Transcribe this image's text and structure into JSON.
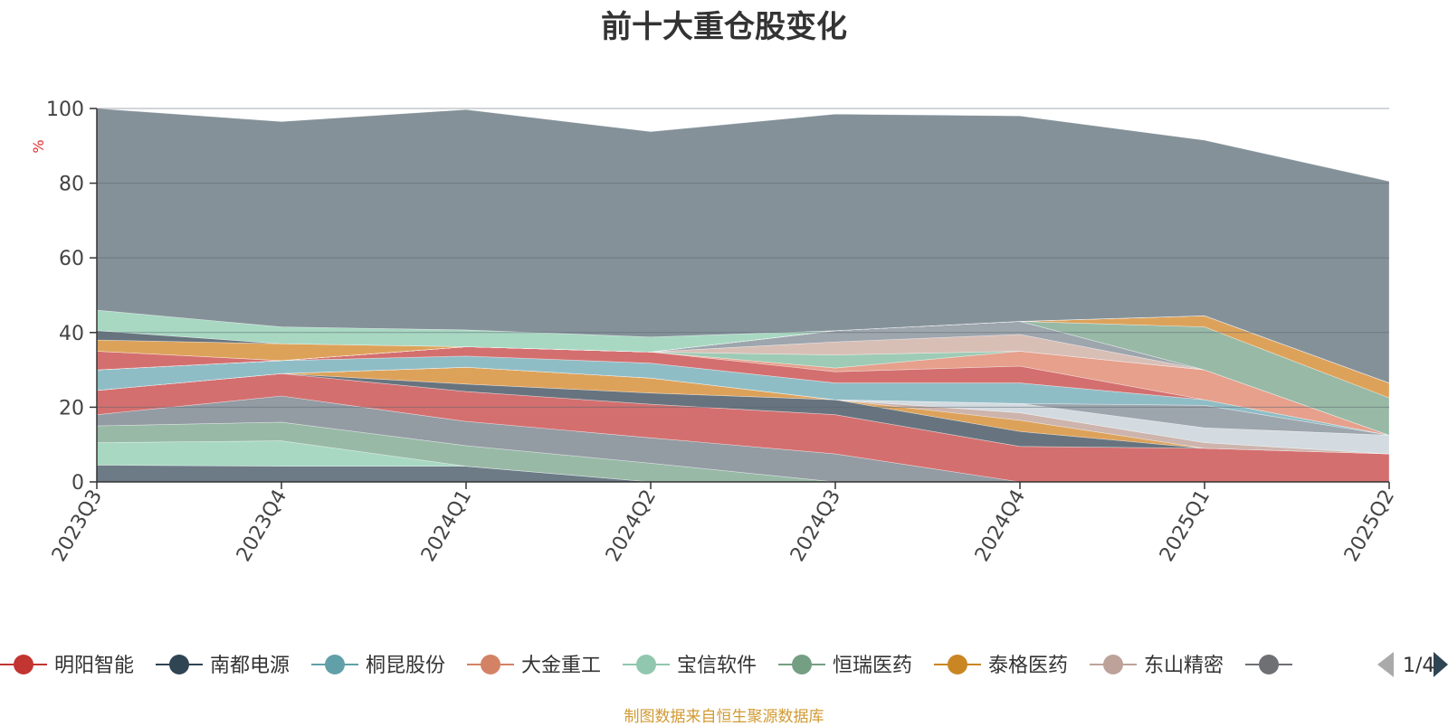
{
  "title": "前十大重仓股变化",
  "source_note": "制图数据来自恒生聚源数据库",
  "legend": {
    "page_indicator": "1/4",
    "prev_button": "previous-page",
    "next_button": "next-page"
  },
  "colors": {
    "title": "#333333",
    "source": "#d19a33",
    "ylabel": "#e03030",
    "background_area": "#849199"
  },
  "chart_data": {
    "type": "area",
    "stacked": true,
    "title": "前十大重仓股变化",
    "ylabel": "%",
    "ylim": [
      0,
      100
    ],
    "yticks": [
      0,
      20,
      40,
      60,
      80,
      100
    ],
    "grid": true,
    "x": [
      "2023Q3",
      "2023Q4",
      "2024Q1",
      "2024Q2",
      "2024Q3",
      "2024Q4",
      "2025Q1",
      "2025Q2"
    ],
    "legend_visible": [
      "明阳智能",
      "南都电源",
      "桐昆股份",
      "大金重工",
      "宝信软件",
      "恒瑞医药",
      "泰格医药",
      "东山精密",
      ""
    ],
    "series": [
      {
        "name": "",
        "color": "#6d7b87",
        "values": [
          4.5,
          4.2,
          4.2,
          0,
          0,
          0,
          0,
          0
        ]
      },
      {
        "name": "宝信软件",
        "color": "#a8d8c2",
        "values": [
          6.0,
          6.8,
          0,
          0,
          0,
          0,
          0,
          0
        ]
      },
      {
        "name": "恒瑞医药",
        "color": "#98b9a6",
        "values": [
          4.5,
          5.0,
          5.5,
          5.0,
          0,
          0,
          0,
          0
        ]
      },
      {
        "name": "",
        "color": "#939ba3",
        "values": [
          3.0,
          7.0,
          6.5,
          6.8,
          7.5,
          0,
          0,
          0
        ]
      },
      {
        "name": "明阳智能",
        "color": "#d46f6f",
        "values": [
          6.5,
          6.0,
          8.0,
          9.0,
          10.5,
          9.5,
          9.0,
          7.5
        ]
      },
      {
        "name": "",
        "color": "#67747f",
        "values": [
          0,
          0,
          2.0,
          3.0,
          4.0,
          4.0,
          0,
          0
        ]
      },
      {
        "name": "泰格医药",
        "color": "#dda25a",
        "values": [
          0,
          0,
          4.5,
          4.0,
          0,
          3.0,
          0,
          0
        ]
      },
      {
        "name": "东山精密",
        "color": "#cdb4ac",
        "values": [
          0,
          0,
          0,
          0,
          0,
          2.0,
          1.5,
          0
        ]
      },
      {
        "name": "",
        "color": "#d3dbe0",
        "values": [
          0,
          0,
          0,
          0,
          0,
          2.5,
          4.0,
          5.0
        ]
      },
      {
        "name": "",
        "color": "#9da5ad",
        "values": [
          0,
          0,
          0,
          0,
          0,
          0,
          6.0,
          0
        ]
      },
      {
        "name": "桐昆股份",
        "color": "#8fbdc6",
        "values": [
          5.5,
          3.5,
          3.0,
          4.0,
          4.5,
          5.5,
          1.5,
          0
        ]
      },
      {
        "name": "",
        "color": "#d46f6f",
        "values": [
          0,
          0,
          2.5,
          3.0,
          3.0,
          4.5,
          0,
          0
        ]
      },
      {
        "name": "大金重工",
        "color": "#e6a08c",
        "values": [
          0,
          0,
          0,
          0,
          1.0,
          4.0,
          8.0,
          0
        ]
      },
      {
        "name": "",
        "color": "#9ecbb5",
        "values": [
          0,
          0,
          0,
          0,
          3.5,
          0,
          0,
          0
        ]
      },
      {
        "name": "",
        "color": "#d8bfb6",
        "values": [
          0,
          0,
          0,
          0,
          3.5,
          4.5,
          0,
          0
        ]
      },
      {
        "name": "",
        "color": "#9da5ad",
        "values": [
          0,
          0,
          0,
          0,
          3.0,
          3.5,
          0,
          0
        ]
      },
      {
        "name": "",
        "color": "#e6a08c",
        "values": [
          0,
          0,
          0,
          0,
          0,
          0,
          0,
          0
        ]
      },
      {
        "name": "",
        "color": "#98b9a6",
        "values": [
          0,
          0,
          0,
          0,
          0,
          0,
          11.5,
          10.0
        ]
      },
      {
        "name": "",
        "color": "#dda25a",
        "values": [
          0,
          0,
          0,
          0,
          0,
          0,
          3.0,
          4.0
        ]
      },
      {
        "name": "",
        "color": "#d46f6f",
        "values": [
          5.0,
          0,
          0,
          0,
          0,
          0,
          0,
          0
        ]
      },
      {
        "name": "",
        "color": "#8fbdc6",
        "values": [
          0,
          0,
          0,
          0,
          0,
          0,
          0,
          0
        ]
      },
      {
        "name": "",
        "color": "#dda25a",
        "values": [
          3.0,
          4.5,
          0,
          0,
          0,
          0,
          0,
          0
        ]
      },
      {
        "name": "",
        "color": "#67747f",
        "values": [
          2.5,
          0,
          0,
          0,
          0,
          0,
          0,
          0
        ]
      },
      {
        "name": "",
        "color": "#a8d8c2",
        "values": [
          5.5,
          4.5,
          4.5,
          4.0,
          0,
          0,
          0,
          0
        ]
      },
      {
        "name": "",
        "color": "#849199",
        "values": [
          57.0,
          55.0,
          59.0,
          55.0,
          58.0,
          55.0,
          47.0,
          54.0
        ]
      }
    ]
  }
}
